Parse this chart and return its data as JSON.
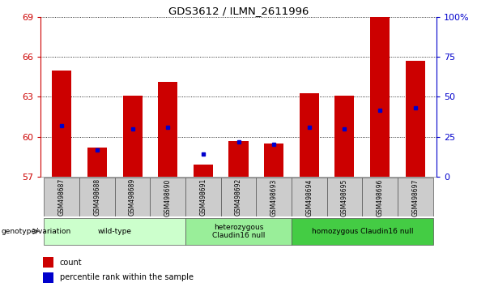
{
  "title": "GDS3612 / ILMN_2611996",
  "samples": [
    "GSM498687",
    "GSM498688",
    "GSM498689",
    "GSM498690",
    "GSM498691",
    "GSM498692",
    "GSM498693",
    "GSM498694",
    "GSM498695",
    "GSM498696",
    "GSM498697"
  ],
  "bar_tops": [
    65.0,
    59.2,
    63.1,
    64.1,
    57.9,
    59.7,
    59.5,
    63.3,
    63.1,
    69.0,
    65.7
  ],
  "blue_dots": [
    60.8,
    59.0,
    60.6,
    60.7,
    58.7,
    59.6,
    59.4,
    60.7,
    60.6,
    62.0,
    62.2
  ],
  "bar_color": "#cc0000",
  "blue_color": "#0000cc",
  "ymin": 57,
  "ymax": 69,
  "yticks": [
    57,
    60,
    63,
    66,
    69
  ],
  "right_yticks": [
    0,
    25,
    50,
    75,
    100
  ],
  "right_ytick_labels": [
    "0",
    "25",
    "50",
    "75",
    "100%"
  ],
  "groups": [
    {
      "label": "wild-type",
      "start": 0,
      "end": 3,
      "color": "#ccffcc"
    },
    {
      "label": "heterozygous\nClaudin16 null",
      "start": 4,
      "end": 6,
      "color": "#99ee99"
    },
    {
      "label": "homozygous Claudin16 null",
      "start": 7,
      "end": 10,
      "color": "#44cc44"
    }
  ],
  "xlabel_left": "genotype/variation",
  "legend_items": [
    {
      "color": "#cc0000",
      "label": "count"
    },
    {
      "color": "#0000cc",
      "label": "percentile rank within the sample"
    }
  ],
  "bar_width": 0.55,
  "left_axis_color": "#cc0000",
  "right_axis_color": "#0000cc",
  "tick_area_color": "#cccccc"
}
